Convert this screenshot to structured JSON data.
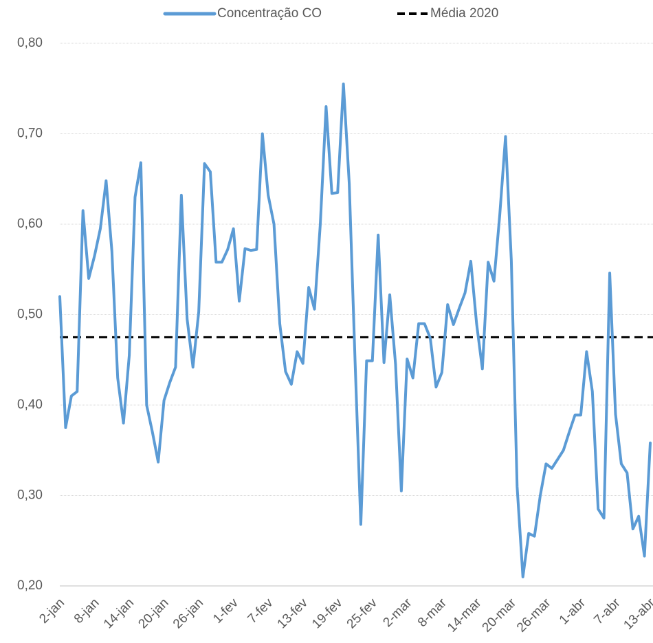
{
  "chart_data": {
    "type": "line",
    "categories": [
      "2-jan",
      null,
      null,
      null,
      null,
      null,
      "8-jan",
      null,
      null,
      null,
      null,
      null,
      "14-jan",
      null,
      null,
      null,
      null,
      null,
      "20-jan",
      null,
      null,
      null,
      null,
      null,
      "26-jan",
      null,
      null,
      null,
      null,
      null,
      "1-fev",
      null,
      null,
      null,
      null,
      null,
      "7-fev",
      null,
      null,
      null,
      null,
      null,
      "13-fev",
      null,
      null,
      null,
      null,
      null,
      "19-fev",
      null,
      null,
      null,
      null,
      null,
      "25-fev",
      null,
      null,
      null,
      null,
      null,
      "2-mar",
      null,
      null,
      null,
      null,
      null,
      "8-mar",
      null,
      null,
      null,
      null,
      null,
      "14-mar",
      null,
      null,
      null,
      null,
      null,
      "20-mar",
      null,
      null,
      null,
      null,
      null,
      "26-mar",
      null,
      null,
      null,
      null,
      null,
      "1-abr",
      null,
      null,
      null,
      null,
      null,
      "7-abr",
      null,
      null,
      null,
      null,
      null,
      "13-abr"
    ],
    "series": [
      {
        "name": "Concentração CO",
        "color": "#5b9bd5",
        "values": [
          0.52,
          0.375,
          0.41,
          0.415,
          0.615,
          0.54,
          0.565,
          0.595,
          0.648,
          0.57,
          0.43,
          0.38,
          0.455,
          0.63,
          0.668,
          0.4,
          0.37,
          0.337,
          0.405,
          0.425,
          0.442,
          0.632,
          0.495,
          0.442,
          0.503,
          0.667,
          0.658,
          0.558,
          0.558,
          0.572,
          0.595,
          0.515,
          0.573,
          0.571,
          0.572,
          0.7,
          0.632,
          0.6,
          0.49,
          0.437,
          0.423,
          0.459,
          0.446,
          0.53,
          0.506,
          0.6,
          0.73,
          0.634,
          0.635,
          0.755,
          0.645,
          0.45,
          0.268,
          0.449,
          0.449,
          0.588,
          0.447,
          0.522,
          0.445,
          0.305,
          0.451,
          0.43,
          0.49,
          0.49,
          0.474,
          0.42,
          0.436,
          0.511,
          0.489,
          0.507,
          0.524,
          0.559,
          0.49,
          0.44,
          0.558,
          0.537,
          0.61,
          0.697,
          0.56,
          0.31,
          0.21,
          0.258,
          0.255,
          0.3,
          0.335,
          0.33,
          0.34,
          0.35,
          0.37,
          0.389,
          0.389,
          0.459,
          0.415,
          0.285,
          0.275,
          0.546,
          0.39,
          0.335,
          0.325,
          0.263,
          0.277,
          0.233,
          0.358
        ]
      }
    ],
    "reference_line": {
      "name": "Média 2020",
      "value": 0.475,
      "color": "#000000"
    },
    "ylim": [
      0.2,
      0.8
    ],
    "yticks": [
      {
        "value": 0.2,
        "label": "0,20"
      },
      {
        "value": 0.3,
        "label": "0,30"
      },
      {
        "value": 0.4,
        "label": "0,40"
      },
      {
        "value": 0.5,
        "label": "0,50"
      },
      {
        "value": 0.6,
        "label": "0,60"
      },
      {
        "value": 0.7,
        "label": "0,70"
      },
      {
        "value": 0.8,
        "label": "0,80"
      }
    ],
    "grid": true,
    "legend": "top"
  }
}
